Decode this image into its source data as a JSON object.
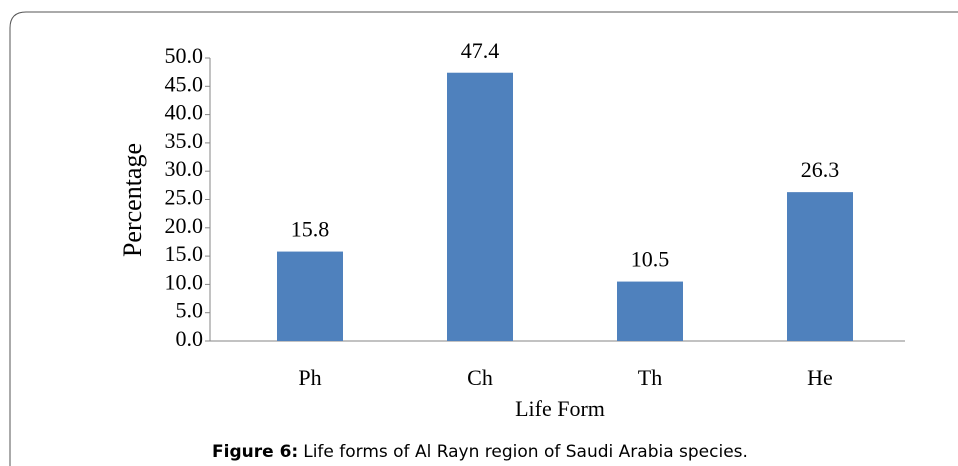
{
  "chart_data": {
    "type": "bar",
    "caption_label": "Figure 6:",
    "caption_text": "Life forms of Al Rayn region of Saudi Arabia species.",
    "x_label": "Life Form",
    "y_label": "Percentage",
    "categories": [
      "Ph",
      "Ch",
      "Th",
      "He"
    ],
    "values": [
      15.8,
      47.4,
      10.5,
      26.3
    ],
    "color": "#4f81bd",
    "ylim": [
      0,
      50
    ],
    "yticks": [
      {
        "value": 0,
        "label": "0.0"
      },
      {
        "value": 5,
        "label": "5.0"
      },
      {
        "value": 10,
        "label": "10.0"
      },
      {
        "value": 15,
        "label": "15.0"
      },
      {
        "value": 20,
        "label": "20.0"
      },
      {
        "value": 25,
        "label": "25.0"
      },
      {
        "value": 30,
        "label": "30.0"
      },
      {
        "value": 35,
        "label": "35.0"
      },
      {
        "value": 40,
        "label": "40.0"
      },
      {
        "value": 45,
        "label": "45.0"
      },
      {
        "value": 50,
        "label": "50.0"
      }
    ],
    "grid": false
  }
}
